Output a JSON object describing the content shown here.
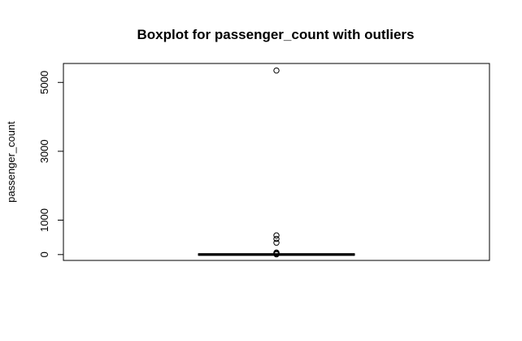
{
  "chart_data": {
    "type": "boxplot",
    "title": "Boxplot for passenger_count with outliers",
    "xlabel": "",
    "ylabel": "passenger_count",
    "ylim": [
      -170,
      5550
    ],
    "y_ticks": [
      0,
      1000,
      3000,
      5000
    ],
    "box": {
      "min": 0,
      "q1": 1,
      "median": 1,
      "q3": 2,
      "max": 5
    },
    "outliers": [
      5345,
      557,
      456,
      345,
      58,
      43,
      35,
      7
    ],
    "colors": {
      "stroke": "#000000",
      "background": "#ffffff"
    }
  }
}
